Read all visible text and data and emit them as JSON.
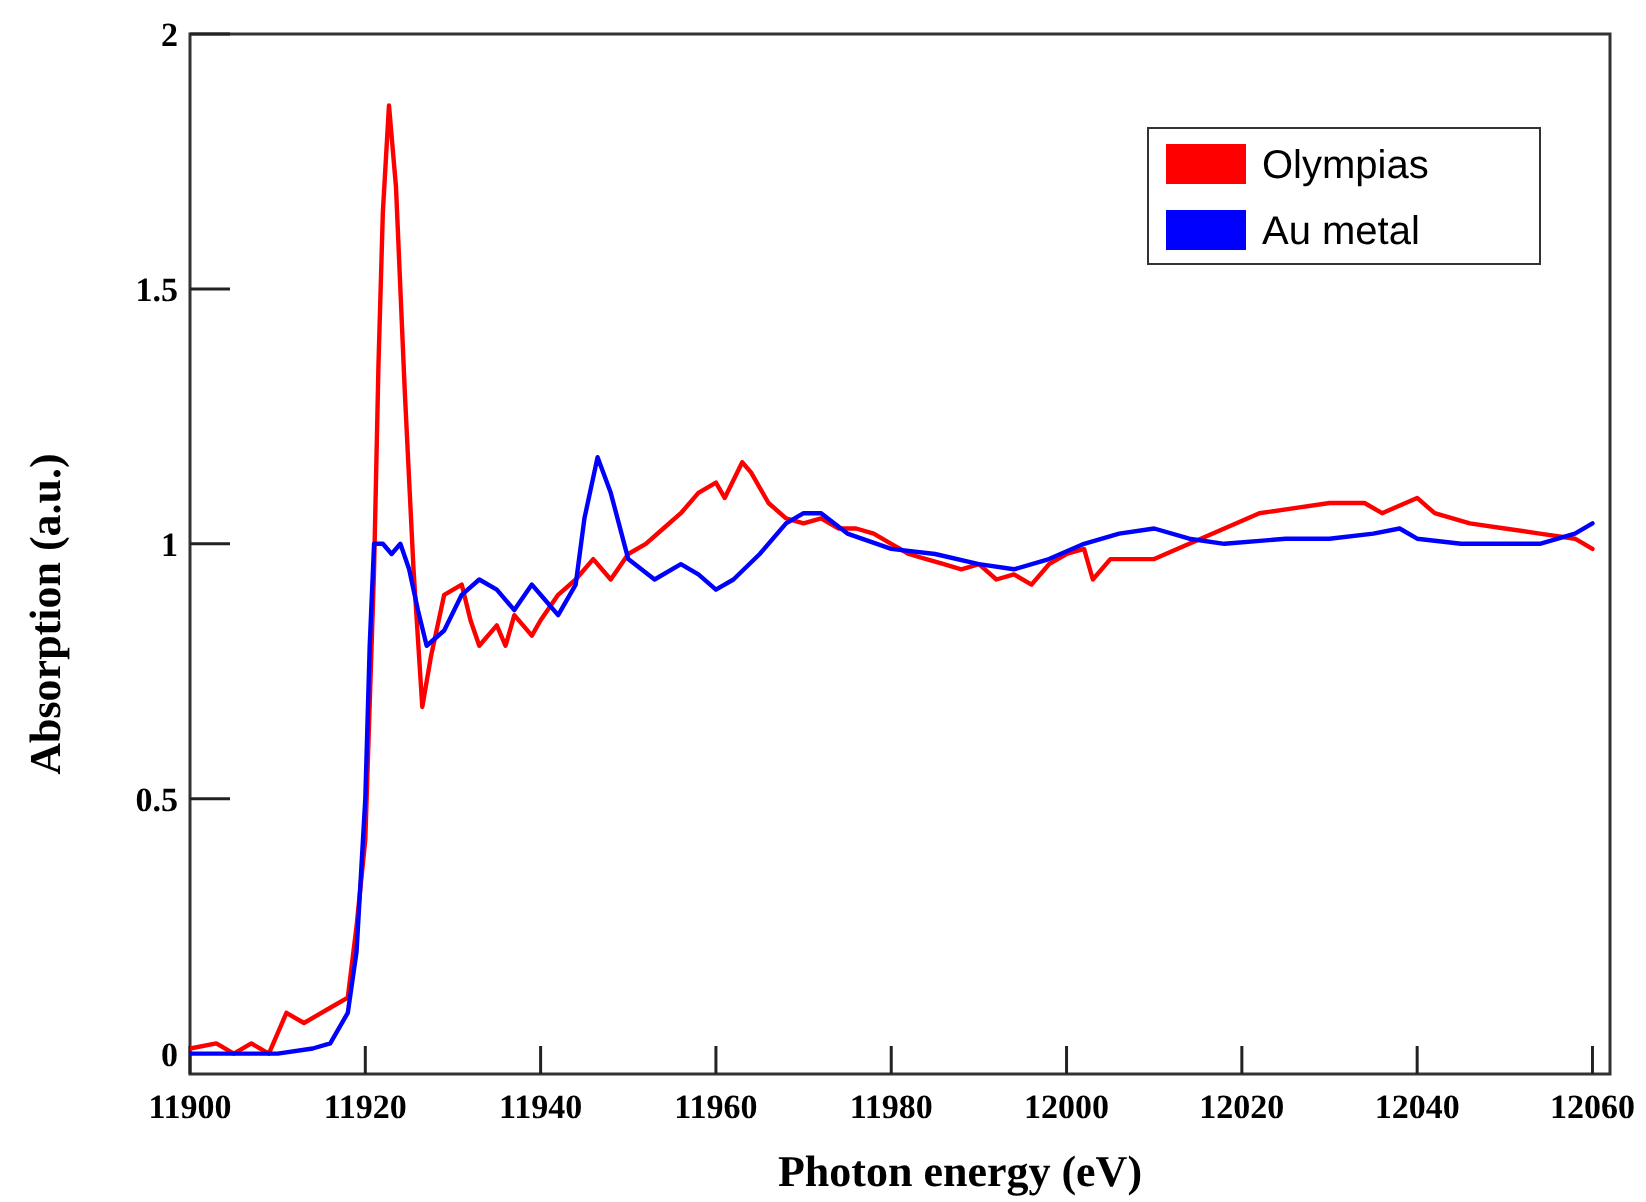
{
  "chart_data": {
    "type": "line",
    "xlabel": "Photon energy (eV)",
    "ylabel": "Absorption (a.u.)",
    "xlim": [
      11900,
      12062
    ],
    "ylim": [
      -0.04,
      2
    ],
    "xticks": [
      11900,
      11920,
      11940,
      11960,
      11980,
      12000,
      12020,
      12040,
      12060
    ],
    "yticks": [
      0,
      0.5,
      1,
      1.5,
      2
    ],
    "legend": "top right",
    "grid": false,
    "marker": "none",
    "line_style": "solid",
    "series": [
      {
        "name": "Olympias",
        "color": "#ff0000",
        "x": [
          11900,
          11903,
          11905,
          11907,
          11909,
          11911,
          11913,
          11916,
          11918,
          11919,
          11920,
          11921,
          11921.5,
          11922,
          11922.7,
          11923.5,
          11924.5,
          11925.5,
          11926.5,
          11927.5,
          11929,
          11931,
          11932,
          11933,
          11935,
          11936,
          11937,
          11939,
          11940,
          11942,
          11944,
          11946,
          11948,
          11950,
          11952,
          11954,
          11956,
          11958,
          11960,
          11961,
          11963,
          11964,
          11966,
          11968,
          11970,
          11972,
          11974,
          11976,
          11978,
          11980,
          11982,
          11984,
          11986,
          11988,
          11990,
          11992,
          11994,
          11996,
          11998,
          12000,
          12002,
          12003,
          12005,
          12008,
          12010,
          12014,
          12018,
          12022,
          12026,
          12030,
          12034,
          12036,
          12040,
          12042,
          12046,
          12050,
          12054,
          12058,
          12060
        ],
        "values": [
          0.01,
          0.02,
          0.0,
          0.02,
          0.0,
          0.08,
          0.06,
          0.09,
          0.11,
          0.25,
          0.42,
          0.95,
          1.35,
          1.65,
          1.86,
          1.7,
          1.3,
          0.95,
          0.68,
          0.78,
          0.9,
          0.92,
          0.85,
          0.8,
          0.84,
          0.8,
          0.86,
          0.82,
          0.85,
          0.9,
          0.93,
          0.97,
          0.93,
          0.98,
          1.0,
          1.03,
          1.06,
          1.1,
          1.12,
          1.09,
          1.16,
          1.14,
          1.08,
          1.05,
          1.04,
          1.05,
          1.03,
          1.03,
          1.02,
          1.0,
          0.98,
          0.97,
          0.96,
          0.95,
          0.96,
          0.93,
          0.94,
          0.92,
          0.96,
          0.98,
          0.99,
          0.93,
          0.97,
          0.97,
          0.97,
          1.0,
          1.03,
          1.06,
          1.07,
          1.08,
          1.08,
          1.06,
          1.09,
          1.06,
          1.04,
          1.03,
          1.02,
          1.01,
          0.99
        ]
      },
      {
        "name": "Au metal",
        "color": "#0000ff",
        "x": [
          11900,
          11910,
          11914,
          11916,
          11918,
          11919,
          11920,
          11920.5,
          11921,
          11922,
          11923,
          11924,
          11925,
          11926,
          11927,
          11929,
          11931,
          11933,
          11935,
          11937,
          11939,
          11940,
          11942,
          11944,
          11945,
          11946.5,
          11948,
          11950,
          11953,
          11956,
          11958,
          11960,
          11962,
          11965,
          11968,
          11970,
          11972,
          11975,
          11980,
          11985,
          11990,
          11994,
          11998,
          12002,
          12006,
          12010,
          12014,
          12018,
          12025,
          12030,
          12035,
          12038,
          12040,
          12045,
          12050,
          12054,
          12058,
          12060
        ],
        "values": [
          0.0,
          0.0,
          0.01,
          0.02,
          0.08,
          0.2,
          0.5,
          0.8,
          1.0,
          1.0,
          0.98,
          1.0,
          0.95,
          0.87,
          0.8,
          0.83,
          0.9,
          0.93,
          0.91,
          0.87,
          0.92,
          0.9,
          0.86,
          0.92,
          1.05,
          1.17,
          1.1,
          0.97,
          0.93,
          0.96,
          0.94,
          0.91,
          0.93,
          0.98,
          1.04,
          1.06,
          1.06,
          1.02,
          0.99,
          0.98,
          0.96,
          0.95,
          0.97,
          1.0,
          1.02,
          1.03,
          1.01,
          1.0,
          1.01,
          1.01,
          1.02,
          1.03,
          1.01,
          1.0,
          1.0,
          1.0,
          1.02,
          1.04
        ]
      }
    ]
  }
}
